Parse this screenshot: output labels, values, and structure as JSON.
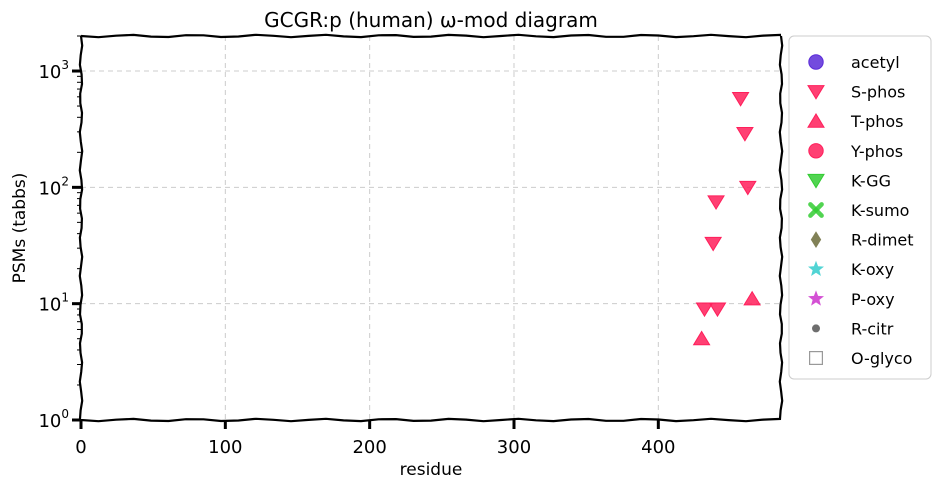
{
  "chart_data": {
    "type": "scatter",
    "title": "GCGR:p (human) ω-mod diagram",
    "xlabel": "residue",
    "ylabel": "PSMs (tabbs)",
    "xlim": [
      0,
      485
    ],
    "ylim": [
      1,
      2000
    ],
    "yscale": "log",
    "grid": true,
    "legend_position": "outside-right",
    "x_ticks": [
      {
        "value": 0,
        "label": "0"
      },
      {
        "value": 100,
        "label": "100"
      },
      {
        "value": 200,
        "label": "200"
      },
      {
        "value": 300,
        "label": "300"
      },
      {
        "value": 400,
        "label": "400"
      }
    ],
    "y_ticks": [
      {
        "value": 1,
        "base": "10",
        "exp": "0"
      },
      {
        "value": 10,
        "base": "10",
        "exp": "1"
      },
      {
        "value": 100,
        "base": "10",
        "exp": "2"
      },
      {
        "value": 1000,
        "base": "10",
        "exp": "3"
      }
    ],
    "series": [
      {
        "name": "acetyl",
        "marker": "circle",
        "color": "#5b2bd8",
        "points": []
      },
      {
        "name": "S-phos",
        "marker": "triangle-down",
        "color": "#ff1f5b",
        "points": [
          [
            457,
            580
          ],
          [
            460,
            290
          ],
          [
            462,
            100
          ],
          [
            440,
            75
          ],
          [
            438,
            33
          ],
          [
            432,
            9
          ],
          [
            441,
            9
          ]
        ]
      },
      {
        "name": "T-phos",
        "marker": "triangle-up",
        "color": "#ff1f5b",
        "points": [
          [
            430,
            5
          ],
          [
            465,
            11
          ]
        ]
      },
      {
        "name": "Y-phos",
        "marker": "circle",
        "color": "#ff1f5b",
        "points": []
      },
      {
        "name": "K-GG",
        "marker": "triangle-down",
        "color": "#33cc33",
        "points": []
      },
      {
        "name": "K-sumo",
        "marker": "x",
        "color": "#33cc33",
        "points": []
      },
      {
        "name": "R-dimet",
        "marker": "diamond",
        "color": "#6b6b3a",
        "points": []
      },
      {
        "name": "K-oxy",
        "marker": "star",
        "color": "#33cccc",
        "points": []
      },
      {
        "name": "P-oxy",
        "marker": "star",
        "color": "#cc33cc",
        "points": []
      },
      {
        "name": "R-citr",
        "marker": "small-circle",
        "color": "#555555",
        "points": []
      },
      {
        "name": "O-glyco",
        "marker": "square-open",
        "color": "#999999",
        "points": []
      }
    ]
  }
}
